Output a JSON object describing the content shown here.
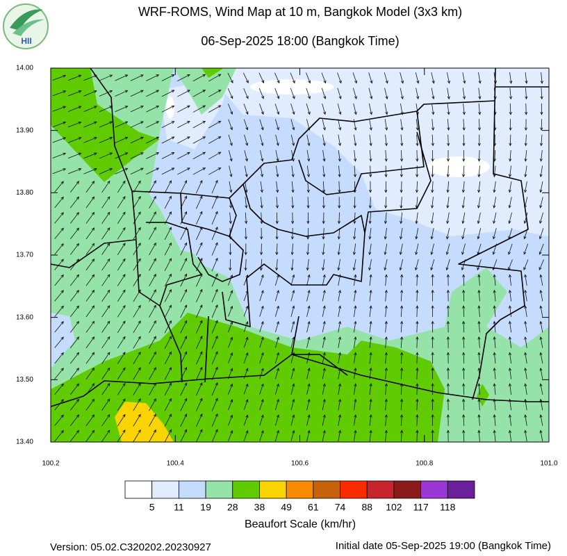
{
  "logo": "HII",
  "map": {
    "title": "WRF-ROMS, Wind Map at 10 m, Bangkok Model (3x3 km)",
    "subtitle": "06-Sep-2025 18:00 (Bangkok Time)",
    "xlim": [
      100.2,
      101
    ],
    "ylim": [
      13.4,
      14
    ],
    "xticks": [
      100.2,
      100.4,
      100.6,
      100.8,
      {
        "value": 101,
        "label": "101.0"
      }
    ],
    "yticks": [
      {
        "value": 14,
        "label": "14.00"
      },
      {
        "value": 13.9,
        "label": "13.90"
      },
      {
        "value": 13.8,
        "label": "13.80"
      },
      {
        "value": 13.7,
        "label": "13.70"
      },
      {
        "value": 13.6,
        "label": "13.60"
      },
      {
        "value": 13.5,
        "label": "13.50"
      },
      {
        "value": 13.4,
        "label": "13.40"
      }
    ]
  },
  "legend": {
    "title": "Beaufort Scale (km/hr)",
    "colors": [
      "#ffffff",
      "#e1ecff",
      "#c6dcff",
      "#96e3a9",
      "#5fcb00",
      "#f9d400",
      "#fa8a00",
      "#c8620a",
      "#fb2b00",
      "#c8242b",
      "#8b1a1a",
      "#9a36d4",
      "#6b1f9a"
    ],
    "bounds": [
      5,
      11,
      19,
      28,
      38,
      49,
      61,
      74,
      88,
      102,
      117,
      118
    ]
  },
  "footer": {
    "version": "Version: 05.02.C320202.20230927",
    "initial_date": "Initial date 05-Sep-2025 19:00 (Bangkok Time)"
  }
}
